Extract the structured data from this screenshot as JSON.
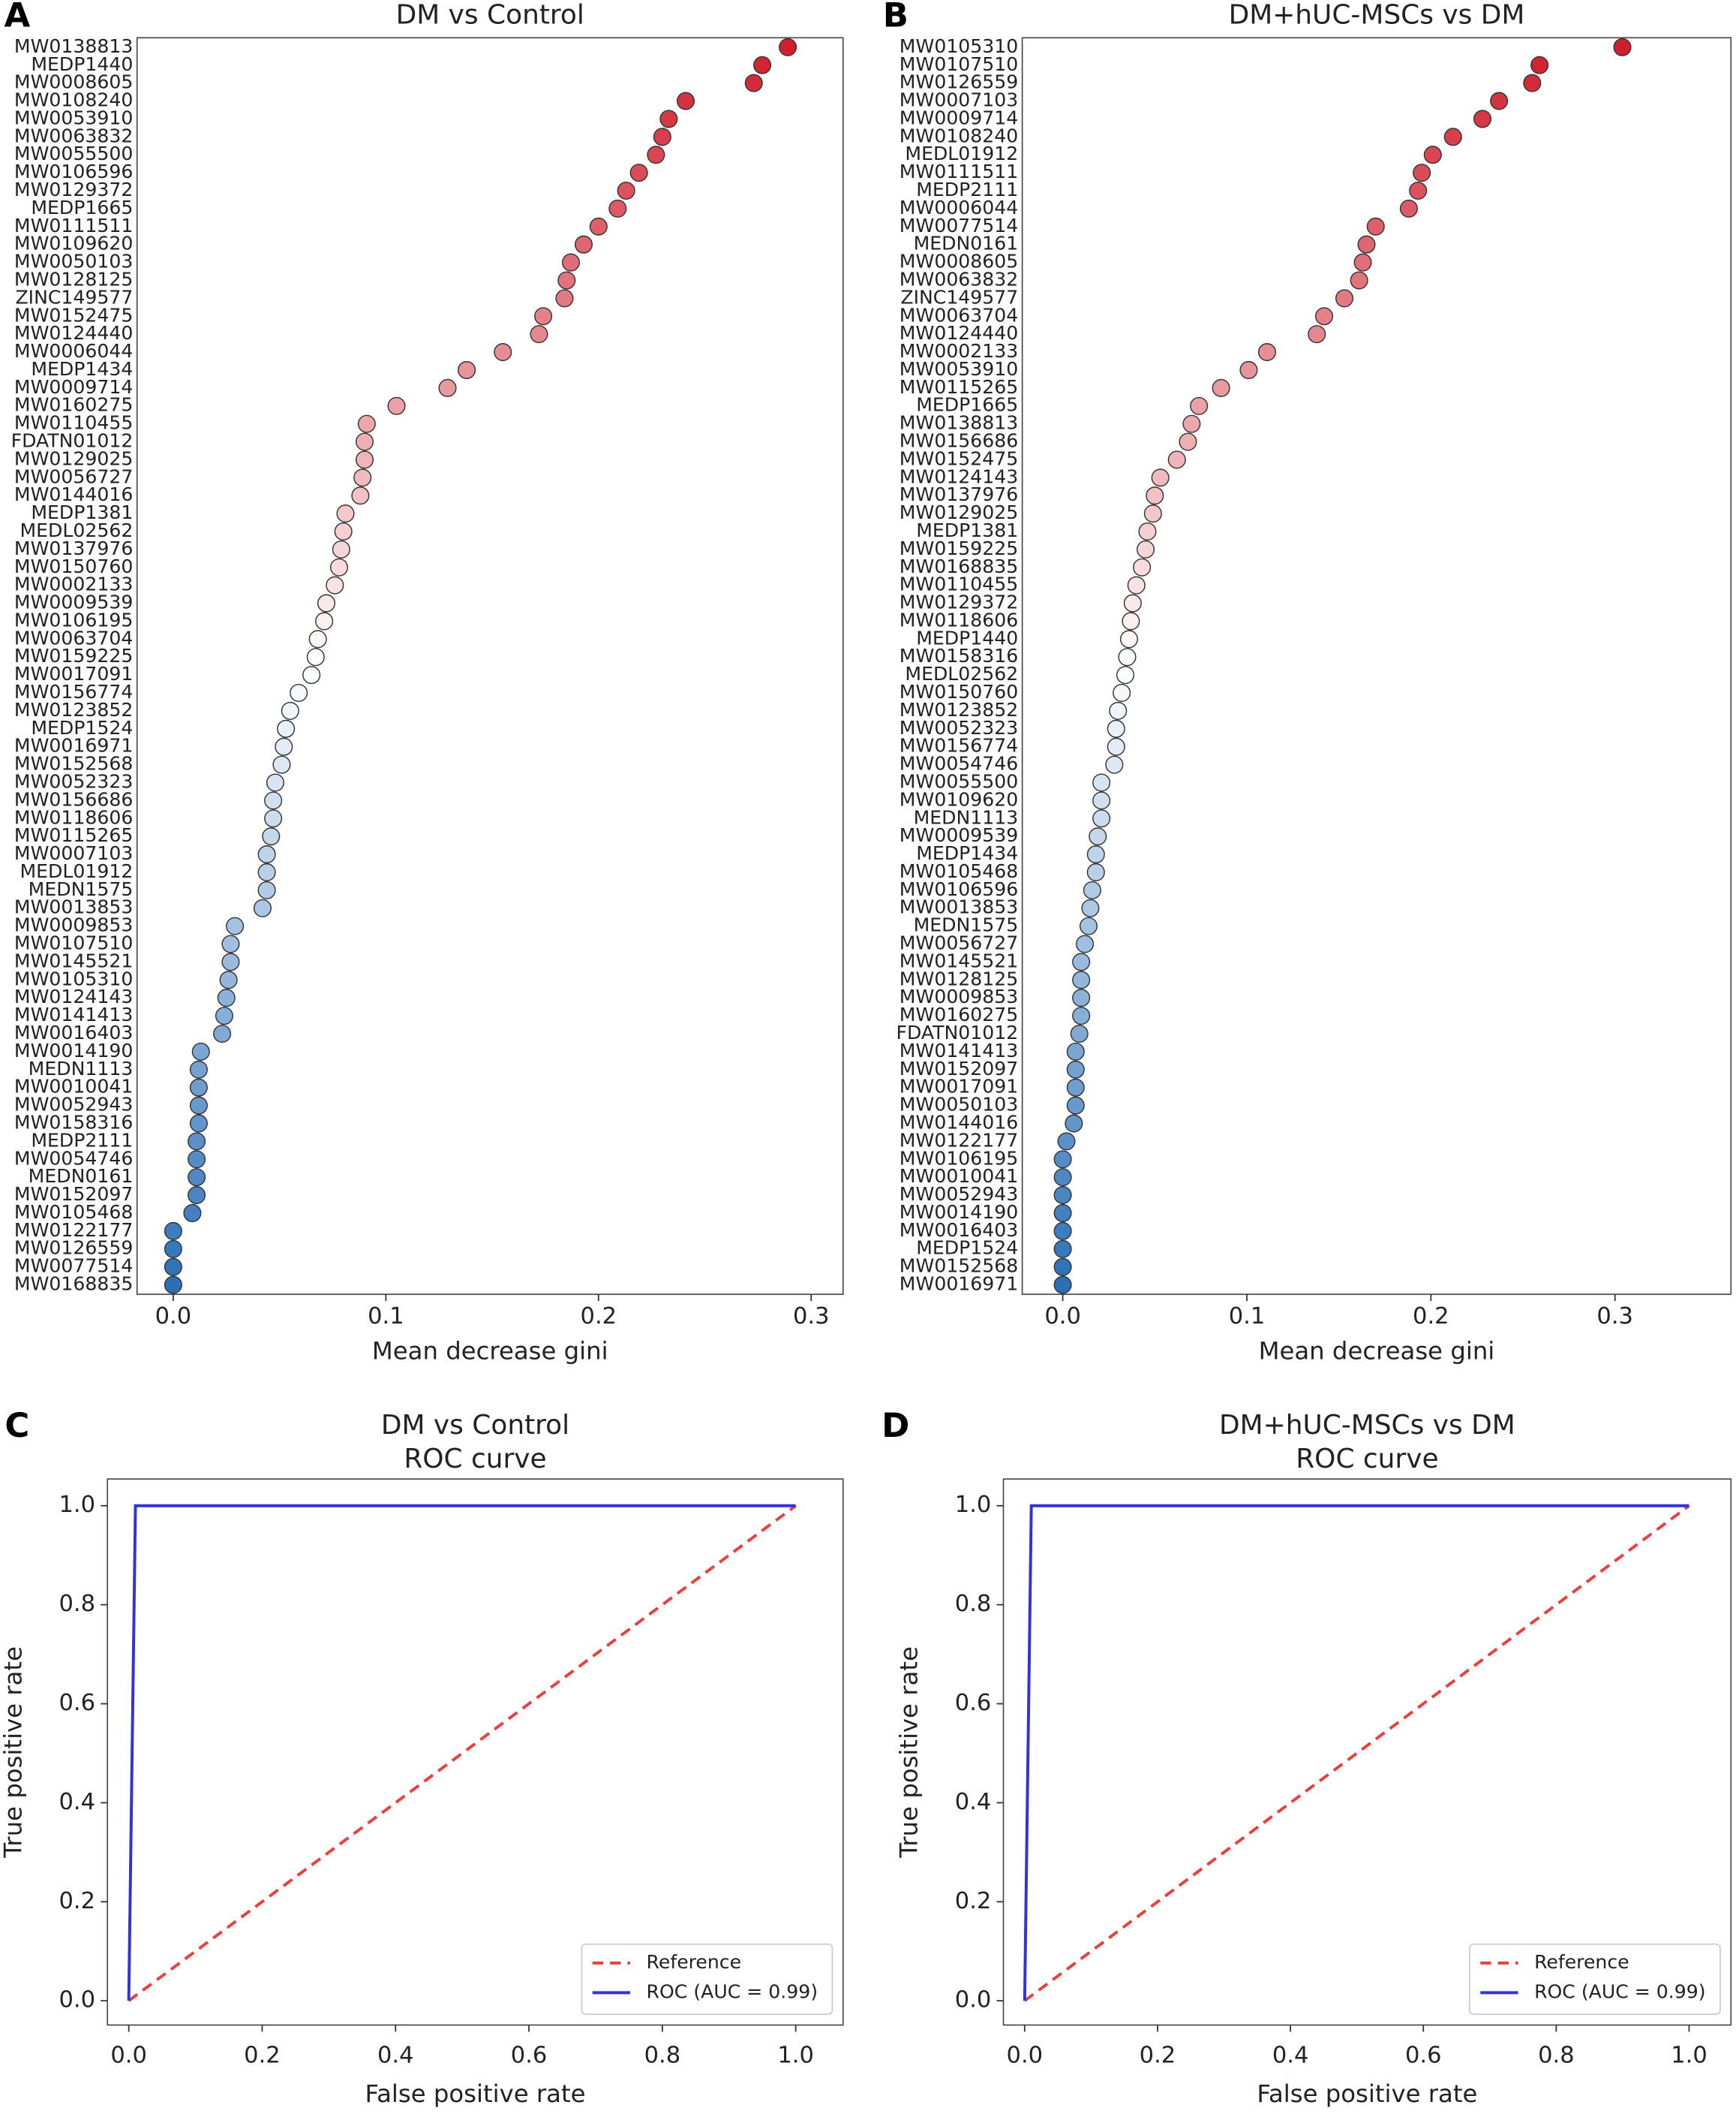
{
  "chart_data": [
    {
      "type": "dot",
      "panel": "A",
      "title": "DM vs Control",
      "xlabel": "Mean decrease gini",
      "categories": [
        "MW0138813",
        "MEDP1440",
        "MW0008605",
        "MW0108240",
        "MW0053910",
        "MW0063832",
        "MW0055500",
        "MW0106596",
        "MW0129372",
        "MEDP1665",
        "MW0111511",
        "MW0109620",
        "MW0050103",
        "MW0128125",
        "ZINC149577",
        "MW0152475",
        "MW0124440",
        "MW0006044",
        "MEDP1434",
        "MW0009714",
        "MW0160275",
        "MW0110455",
        "FDATN01012",
        "MW0129025",
        "MW0056727",
        "MW0144016",
        "MEDP1381",
        "MEDL02562",
        "MW0137976",
        "MW0150760",
        "MW0002133",
        "MW0009539",
        "MW0106195",
        "MW0063704",
        "MW0159225",
        "MW0017091",
        "MW0156774",
        "MW0123852",
        "MEDP1524",
        "MW0016971",
        "MW0152568",
        "MW0052323",
        "MW0156686",
        "MW0118606",
        "MW0115265",
        "MW0007103",
        "MEDL01912",
        "MEDN1575",
        "MW0013853",
        "MW0009853",
        "MW0107510",
        "MW0145521",
        "MW0105310",
        "MW0124143",
        "MW0141413",
        "MW0016403",
        "MW0014190",
        "MEDN1113",
        "MW0010041",
        "MW0052943",
        "MW0158316",
        "MEDP2111",
        "MW0054746",
        "MEDN0161",
        "MW0152097",
        "MW0105468",
        "MW0122177",
        "MW0126559",
        "MW0077514",
        "MW0168835"
      ],
      "values": [
        0.289,
        0.277,
        0.273,
        0.241,
        0.233,
        0.23,
        0.227,
        0.219,
        0.213,
        0.209,
        0.2,
        0.193,
        0.187,
        0.185,
        0.184,
        0.174,
        0.172,
        0.155,
        0.138,
        0.129,
        0.105,
        0.091,
        0.09,
        0.09,
        0.089,
        0.088,
        0.081,
        0.08,
        0.079,
        0.078,
        0.076,
        0.072,
        0.071,
        0.068,
        0.067,
        0.065,
        0.059,
        0.055,
        0.053,
        0.052,
        0.051,
        0.048,
        0.047,
        0.047,
        0.046,
        0.044,
        0.044,
        0.044,
        0.042,
        0.029,
        0.027,
        0.027,
        0.026,
        0.025,
        0.024,
        0.023,
        0.013,
        0.012,
        0.012,
        0.012,
        0.012,
        0.011,
        0.011,
        0.011,
        0.011,
        0.009,
        0,
        0,
        0,
        0
      ],
      "colormap": [
        "#cf1f2e",
        "#ffffff",
        "#2b6fb7"
      ],
      "xlim": [
        -0.017,
        0.315
      ],
      "xticks": [
        {
          "value": 0,
          "label": "0.0"
        },
        0.1,
        0.2,
        0.3
      ]
    },
    {
      "type": "dot",
      "panel": "B",
      "title": "DM+hUC-MSCs vs DM",
      "xlabel": "Mean decrease gini",
      "categories": [
        "MW0105310",
        "MW0107510",
        "MW0126559",
        "MW0007103",
        "MW0009714",
        "MW0108240",
        "MEDL01912",
        "MW0111511",
        "MEDP2111",
        "MW0006044",
        "MW0077514",
        "MEDN0161",
        "MW0008605",
        "MW0063832",
        "ZINC149577",
        "MW0063704",
        "MW0124440",
        "MW0002133",
        "MW0053910",
        "MW0115265",
        "MEDP1665",
        "MW0138813",
        "MW0156686",
        "MW0152475",
        "MW0124143",
        "MW0137976",
        "MW0129025",
        "MEDP1381",
        "MW0159225",
        "MW0168835",
        "MW0110455",
        "MW0129372",
        "MW0118606",
        "MEDP1440",
        "MW0158316",
        "MEDL02562",
        "MW0150760",
        "MW0123852",
        "MW0052323",
        "MW0156774",
        "MW0054746",
        "MW0055500",
        "MW0109620",
        "MEDN1113",
        "MW0009539",
        "MEDP1434",
        "MW0105468",
        "MW0106596",
        "MW0013853",
        "MEDN1575",
        "MW0056727",
        "MW0145521",
        "MW0128125",
        "MW0009853",
        "MW0160275",
        "FDATN01012",
        "MW0141413",
        "MW0152097",
        "MW0017091",
        "MW0050103",
        "MW0144016",
        "MW0122177",
        "MW0106195",
        "MW0010041",
        "MW0052943",
        "MW0014190",
        "MW0016403",
        "MEDP1524",
        "MW0152568",
        "MW0016971"
      ],
      "values": [
        0.304,
        0.259,
        0.255,
        0.237,
        0.228,
        0.212,
        0.201,
        0.195,
        0.193,
        0.188,
        0.17,
        0.165,
        0.163,
        0.161,
        0.153,
        0.142,
        0.138,
        0.111,
        0.101,
        0.086,
        0.074,
        0.07,
        0.068,
        0.062,
        0.053,
        0.05,
        0.049,
        0.046,
        0.045,
        0.043,
        0.04,
        0.038,
        0.037,
        0.036,
        0.035,
        0.034,
        0.032,
        0.03,
        0.029,
        0.029,
        0.028,
        0.021,
        0.021,
        0.021,
        0.019,
        0.018,
        0.018,
        0.016,
        0.015,
        0.014,
        0.012,
        0.01,
        0.01,
        0.01,
        0.01,
        0.009,
        0.007,
        0.007,
        0.007,
        0.007,
        0.006,
        0.002,
        0,
        0,
        0,
        0,
        0,
        0,
        0,
        0
      ],
      "colormap": [
        "#cf1f2e",
        "#ffffff",
        "#2b6fb7"
      ],
      "xlim": [
        -0.022,
        0.363
      ],
      "xticks": [
        {
          "value": 0,
          "label": "0.0"
        },
        0.1,
        0.2,
        0.3
      ]
    },
    {
      "type": "line",
      "panel": "C",
      "title": "DM vs Control",
      "subtitle": "ROC curve",
      "xlabel": "False positive rate",
      "ylabel": "True positive rate",
      "legend": "lower right",
      "series": [
        {
          "name": "Reference",
          "color": "#e8403d",
          "linestyle": "dashed",
          "x": [
            0,
            1
          ],
          "values": [
            0,
            1
          ]
        },
        {
          "name": "ROC (AUC = 0.99)",
          "color": "#3232d6",
          "linestyle": "solid",
          "x": [
            0,
            0.01,
            1
          ],
          "values": [
            0,
            1,
            1
          ]
        }
      ],
      "xlim": [
        -0.032,
        1.071
      ],
      "ylim": [
        -0.049,
        1.054
      ],
      "xticks": [
        {
          "value": 0,
          "label": "0.0"
        },
        0.2,
        0.4,
        0.6,
        0.8,
        {
          "value": 1,
          "label": "1.0"
        }
      ],
      "yticks": [
        {
          "value": 0,
          "label": "0.0"
        },
        0.2,
        0.4,
        0.6,
        0.8,
        {
          "value": 1,
          "label": "1.0"
        }
      ]
    },
    {
      "type": "line",
      "panel": "D",
      "title": "DM+hUC-MSCs vs DM",
      "subtitle": "ROC curve",
      "xlabel": "False positive rate",
      "ylabel": "True positive rate",
      "legend": "lower right",
      "series": [
        {
          "name": "Reference",
          "color": "#e8403d",
          "linestyle": "dashed",
          "x": [
            0,
            1
          ],
          "values": [
            0,
            1
          ]
        },
        {
          "name": "ROC (AUC = 0.99)",
          "color": "#3232d6",
          "linestyle": "solid",
          "x": [
            0,
            0.01,
            1
          ],
          "values": [
            0,
            1,
            1
          ]
        }
      ],
      "xlim": [
        -0.032,
        1.063
      ],
      "ylim": [
        -0.049,
        1.054
      ],
      "xticks": [
        {
          "value": 0,
          "label": "0.0"
        },
        0.2,
        0.4,
        0.6,
        0.8,
        {
          "value": 1,
          "label": "1.0"
        }
      ],
      "yticks": [
        {
          "value": 0,
          "label": "0.0"
        },
        0.2,
        0.4,
        0.6,
        0.8,
        {
          "value": 1,
          "label": "1.0"
        }
      ]
    }
  ]
}
